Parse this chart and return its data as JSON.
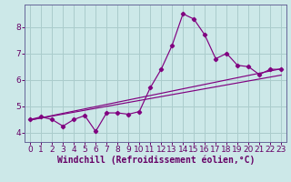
{
  "xlabel": "Windchill (Refroidissement éolien,°C)",
  "bg_color": "#cce8e8",
  "grid_color": "#aacccc",
  "line_color": "#800080",
  "spine_color": "#666699",
  "x_ticks": [
    0,
    1,
    2,
    3,
    4,
    5,
    6,
    7,
    8,
    9,
    10,
    11,
    12,
    13,
    14,
    15,
    16,
    17,
    18,
    19,
    20,
    21,
    22,
    23
  ],
  "y_ticks": [
    4,
    5,
    6,
    7,
    8
  ],
  "ylim": [
    3.65,
    8.85
  ],
  "xlim": [
    -0.5,
    23.5
  ],
  "series1_x": [
    0,
    1,
    2,
    3,
    4,
    5,
    6,
    7,
    8,
    9,
    10,
    11,
    12,
    13,
    14,
    15,
    16,
    17,
    18,
    19,
    20,
    21,
    22,
    23
  ],
  "series1_y": [
    4.5,
    4.6,
    4.5,
    4.25,
    4.5,
    4.65,
    4.05,
    4.75,
    4.75,
    4.7,
    4.8,
    5.7,
    6.4,
    7.3,
    8.5,
    8.3,
    7.7,
    6.8,
    7.0,
    6.55,
    6.5,
    6.2,
    6.4,
    6.4
  ],
  "series2_x": [
    0,
    23
  ],
  "series2_y": [
    4.48,
    6.42
  ],
  "series3_x": [
    0,
    23
  ],
  "series3_y": [
    4.48,
    6.18
  ],
  "font_color": "#660066",
  "tick_fontsize": 6.5,
  "label_fontsize": 7,
  "marker": "D",
  "markersize": 2.2,
  "linewidth": 0.85
}
